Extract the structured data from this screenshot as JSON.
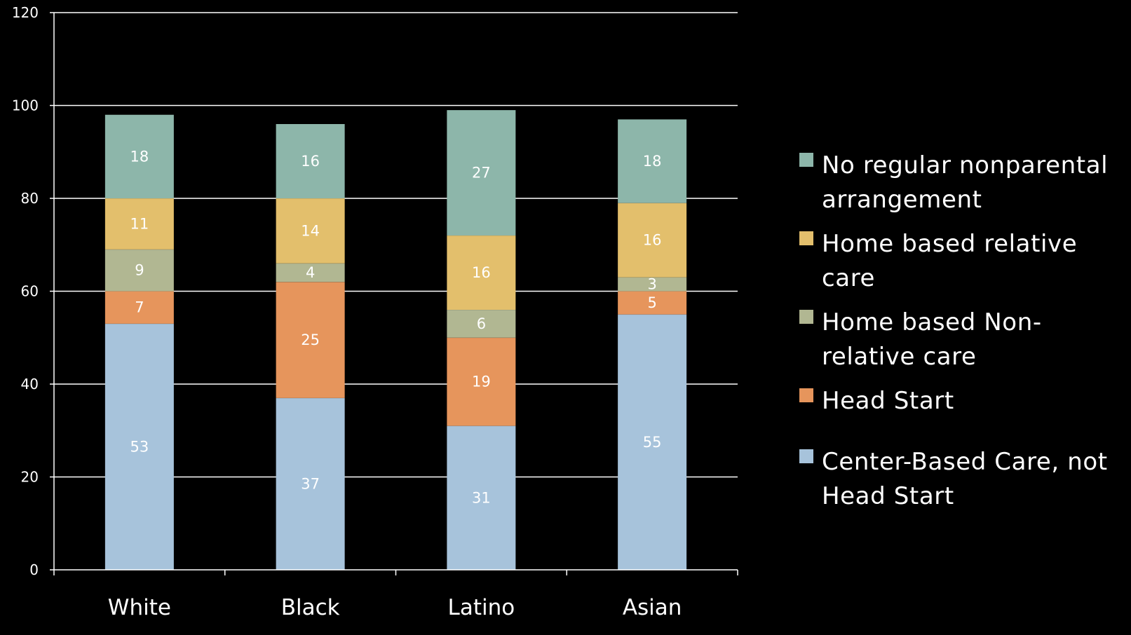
{
  "chart_data": {
    "type": "bar",
    "stacked": true,
    "categories": [
      "White",
      "Black",
      "Latino",
      "Asian"
    ],
    "ylim": [
      0,
      120
    ],
    "yticks": [
      0,
      20,
      40,
      60,
      80,
      100,
      120
    ],
    "ytick_labels": [
      "0",
      "20",
      "40",
      "60",
      "80",
      "100",
      "120"
    ],
    "grid": true,
    "legend_position": "right",
    "series": [
      {
        "name": "Center-Based Care, not Head Start",
        "color": "#a7c3db",
        "values": [
          53,
          37,
          31,
          55
        ]
      },
      {
        "name": "Head Start",
        "color": "#e6955c",
        "values": [
          7,
          25,
          19,
          5
        ]
      },
      {
        "name": "Home based Non-relative care",
        "color": "#b1b792",
        "values": [
          9,
          4,
          6,
          3
        ]
      },
      {
        "name": "Home based relative care",
        "color": "#e3bf6c",
        "values": [
          11,
          14,
          16,
          16
        ]
      },
      {
        "name": "No regular nonparental arrangement",
        "color": "#8db6aa",
        "values": [
          18,
          16,
          27,
          18
        ]
      }
    ]
  },
  "legend_order": [
    4,
    3,
    2,
    1,
    0
  ]
}
